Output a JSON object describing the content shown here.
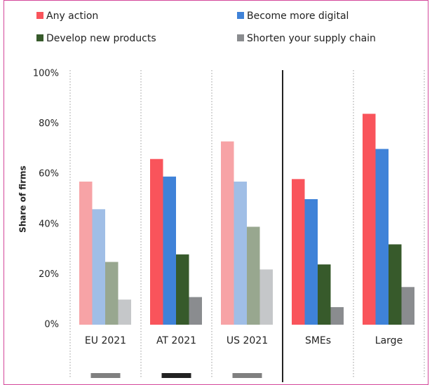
{
  "chart_data": {
    "type": "bar",
    "y_label": "Share of firms",
    "categories": [
      "EU 2021",
      "AT 2021",
      "US 2021",
      "SMEs",
      "Large"
    ],
    "faded": [
      true,
      false,
      true,
      false,
      false
    ],
    "series": [
      {
        "name": "Any action",
        "color": "#f9545b",
        "faded_color": "#f7a3a6",
        "values": [
          57,
          66,
          73,
          58,
          84
        ]
      },
      {
        "name": "Become more digital",
        "color": "#3f82d8",
        "faded_color": "#a0bee6",
        "values": [
          46,
          59,
          57,
          50,
          70
        ]
      },
      {
        "name": "Develop new products",
        "color": "#375a2b",
        "faded_color": "#98a78f",
        "values": [
          25,
          28,
          39,
          24,
          32
        ]
      },
      {
        "name": "Shorten your supply chain",
        "color": "#8a8c8f",
        "faded_color": "#c5c7c9",
        "values": [
          10,
          11,
          22,
          7,
          15
        ]
      }
    ],
    "ylim": [
      0,
      100
    ],
    "yticks": [
      {
        "value": 0,
        "label": "0%"
      },
      {
        "value": 20,
        "label": "20%"
      },
      {
        "value": 40,
        "label": "40%"
      },
      {
        "value": 60,
        "label": "60%"
      },
      {
        "value": 80,
        "label": "80%"
      },
      {
        "value": 100,
        "label": "100%"
      }
    ],
    "grid": false
  }
}
